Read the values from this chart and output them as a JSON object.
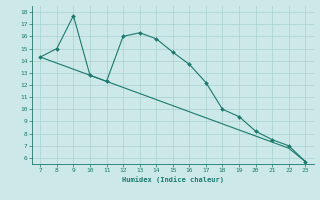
{
  "x": [
    7,
    8,
    9,
    10,
    11,
    12,
    13,
    14,
    15,
    16,
    17,
    18,
    19,
    20,
    21,
    22,
    23
  ],
  "y_curve": [
    14.3,
    15.0,
    17.7,
    12.8,
    12.3,
    16.0,
    16.3,
    15.8,
    14.7,
    13.7,
    12.2,
    10.0,
    9.4,
    8.2,
    7.5,
    7.0,
    5.7
  ],
  "y_line": [
    14.3,
    13.8,
    13.3,
    12.8,
    12.3,
    11.8,
    11.3,
    10.8,
    10.3,
    9.8,
    9.3,
    8.8,
    8.3,
    7.8,
    7.3,
    6.8,
    5.7
  ],
  "line_color": "#1a7a6e",
  "bg_color": "#cce8e8",
  "grid_color": "#aad0d0",
  "xlabel": "Humidex (Indice chaleur)",
  "xlim": [
    6.5,
    23.5
  ],
  "ylim": [
    5.5,
    18.5
  ],
  "xticks": [
    7,
    8,
    9,
    10,
    11,
    12,
    13,
    14,
    15,
    16,
    17,
    18,
    19,
    20,
    21,
    22,
    23
  ],
  "yticks": [
    6,
    7,
    8,
    9,
    10,
    11,
    12,
    13,
    14,
    15,
    16,
    17,
    18
  ]
}
